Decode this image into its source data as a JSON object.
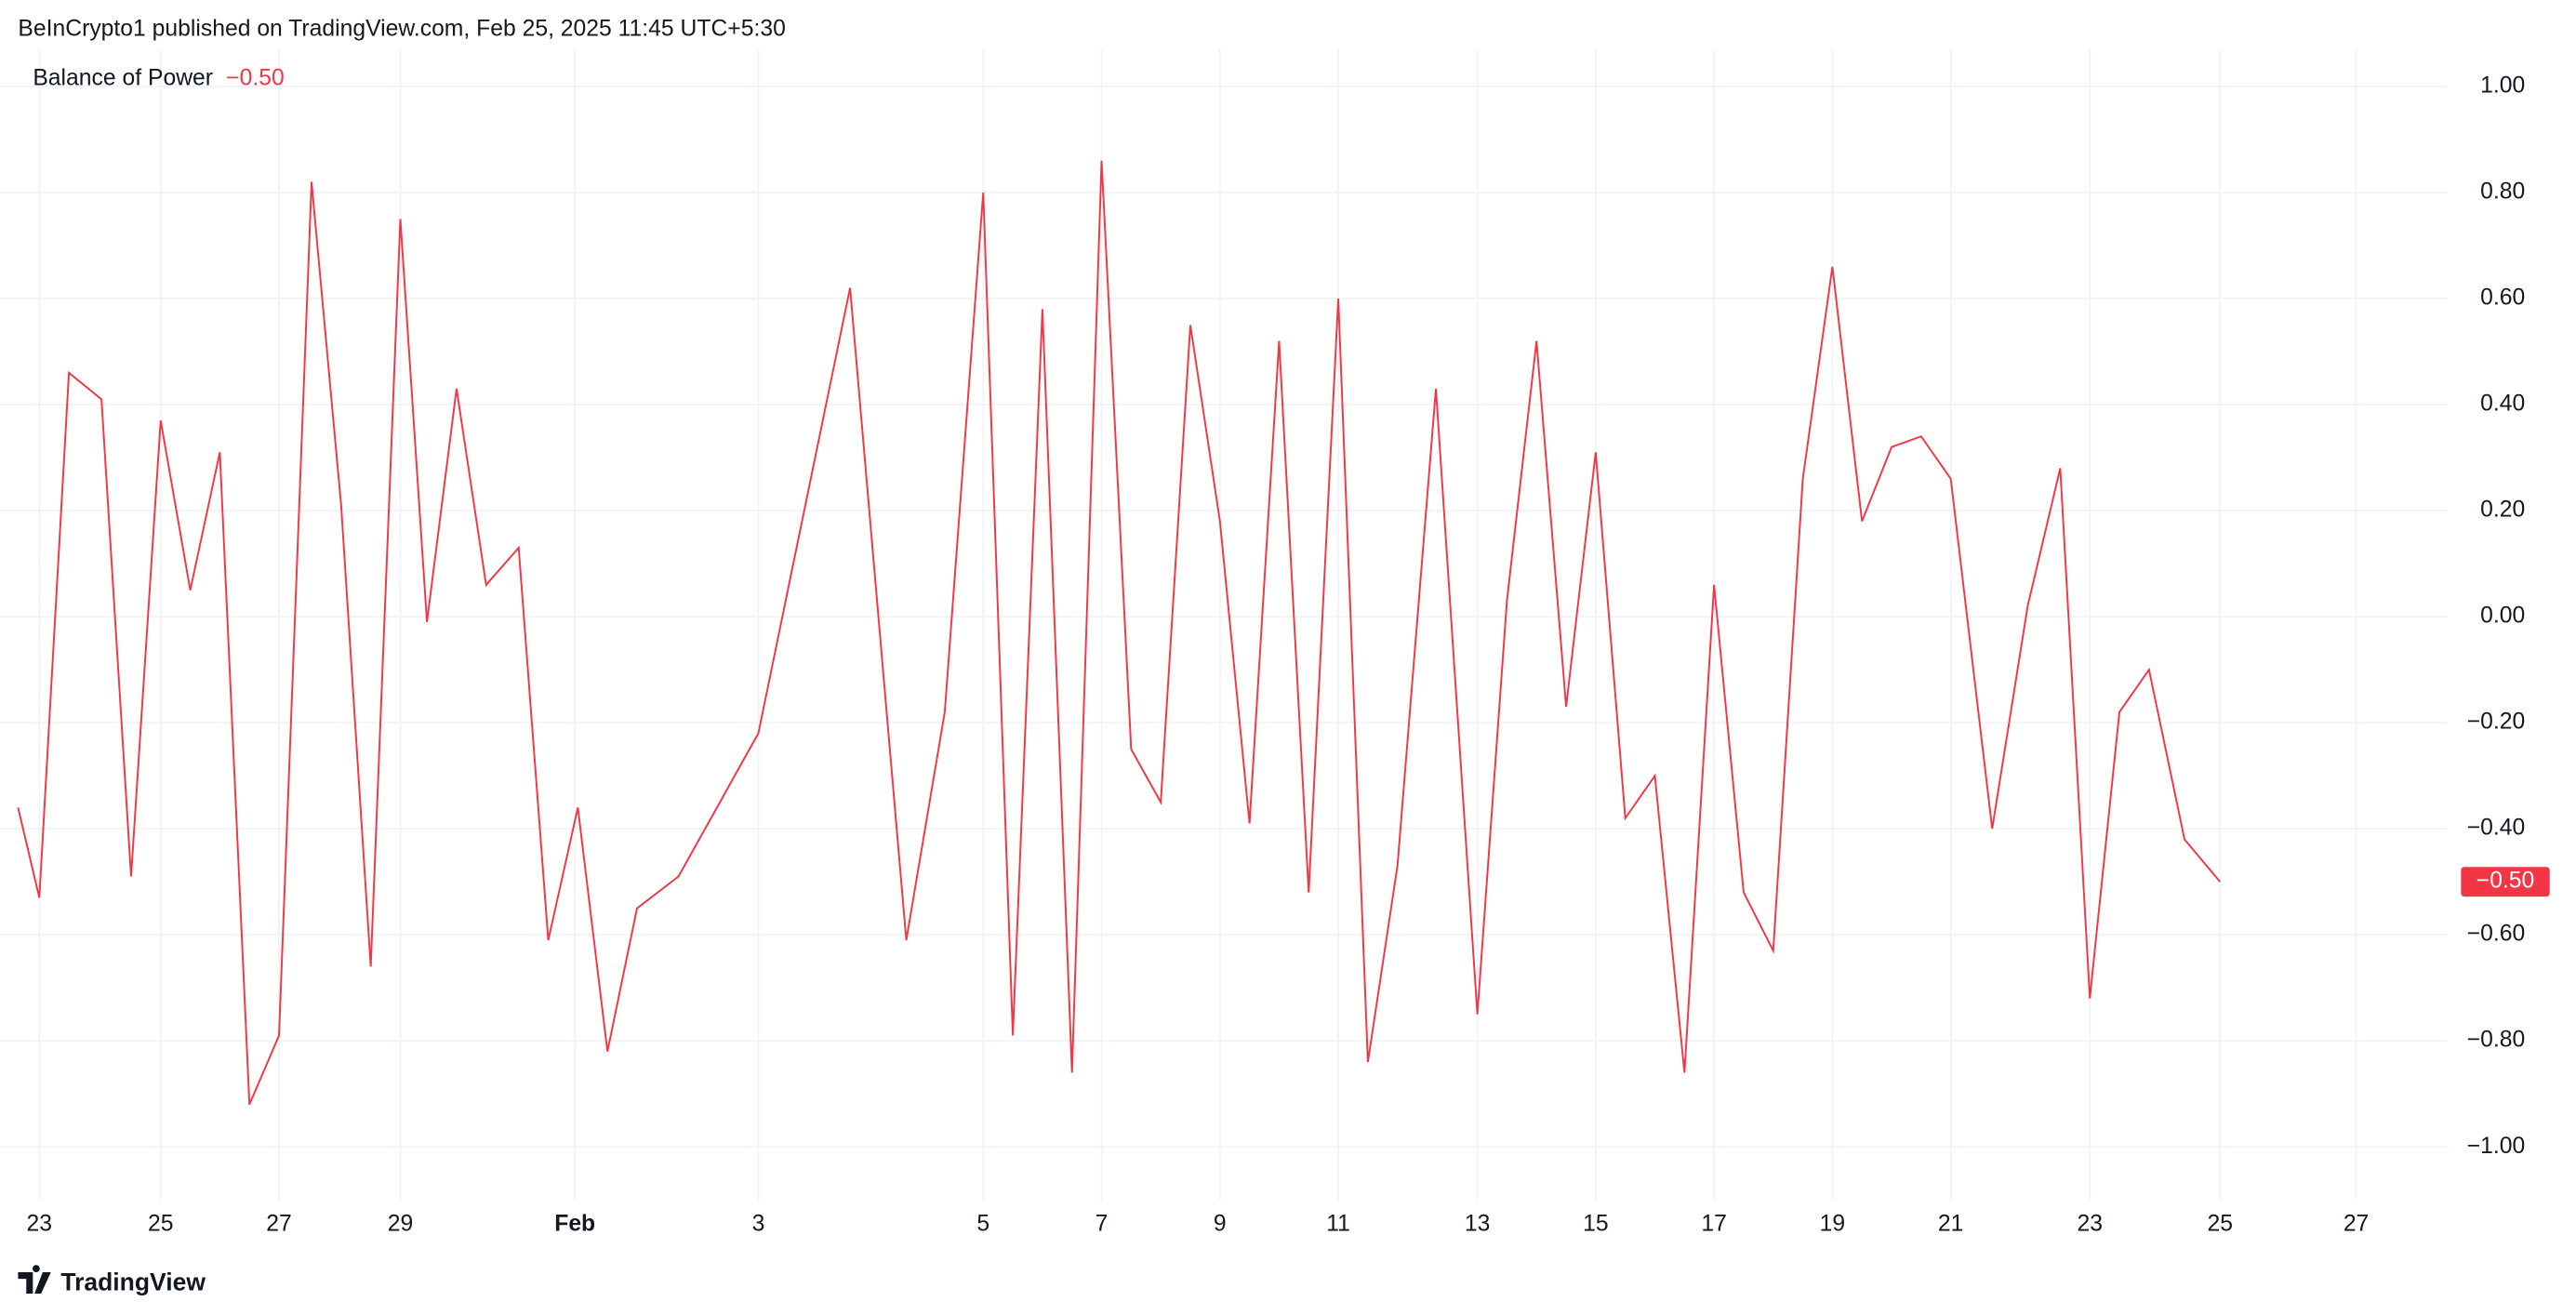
{
  "header": "BeInCrypto1 published on TradingView.com, Feb 25, 2025 11:45 UTC+5:30",
  "footer": "TradingView",
  "chart_data": {
    "type": "line",
    "x": [
      -0.72,
      0,
      1,
      2.1,
      3.1,
      4.1,
      5.1,
      6.1,
      7.1,
      8.1,
      9.2,
      10.2,
      11.2,
      12.2,
      13.1,
      14.1,
      15.1,
      16.2,
      17.2,
      18.2,
      19.2,
      20.2,
      21.6,
      24.3,
      27.4,
      29.3,
      30.6,
      31.9,
      32.9,
      33.9,
      34.9,
      35.9,
      36.9,
      37.9,
      38.9,
      39.9,
      40.9,
      41.9,
      42.9,
      43.9,
      44.9,
      45.9,
      47.2,
      48.6,
      49.6,
      50.6,
      51.6,
      52.6,
      53.6,
      54.6,
      55.6,
      56.6,
      57.6,
      58.6,
      59.6,
      60.6,
      61.6,
      62.6,
      63.6,
      64.6,
      66,
      67.2,
      68.3,
      69.3,
      70.3,
      71.3,
      72.5,
      73.7
    ],
    "series": [
      {
        "name": "Balance of Power",
        "color": "#f23645",
        "values": [
          -0.36,
          -0.53,
          0.46,
          0.41,
          -0.49,
          0.37,
          0.05,
          0.31,
          -0.92,
          -0.79,
          0.82,
          0.21,
          -0.66,
          0.75,
          -0.01,
          0.43,
          0.06,
          0.13,
          -0.61,
          -0.36,
          -0.82,
          -0.55,
          -0.49,
          -0.22,
          0.62,
          -0.61,
          -0.18,
          0.8,
          -0.79,
          0.58,
          -0.86,
          0.86,
          -0.25,
          -0.35,
          0.55,
          0.18,
          -0.39,
          0.52,
          -0.52,
          0.6,
          -0.84,
          -0.47,
          0.43,
          -0.75,
          0.03,
          0.52,
          -0.17,
          0.31,
          -0.38,
          -0.3,
          -0.86,
          0.06,
          -0.52,
          -0.63,
          0.26,
          0.66,
          0.18,
          0.32,
          0.34,
          0.26,
          -0.4,
          0.02,
          0.28,
          -0.72,
          -0.18,
          -0.1,
          -0.42,
          -0.5
        ],
        "last_value_label": "−0.50"
      }
    ],
    "xlim": [
      -1.33,
      81.4
    ],
    "xticks": [
      {
        "value": 0,
        "label": "23"
      },
      {
        "value": 4.1,
        "label": "25"
      },
      {
        "value": 8.1,
        "label": "27"
      },
      {
        "value": 12.2,
        "label": "29"
      },
      {
        "value": 18.1,
        "label": "Feb"
      },
      {
        "value": 24.3,
        "label": "3"
      },
      {
        "value": 31.9,
        "label": "5"
      },
      {
        "value": 35.9,
        "label": "7"
      },
      {
        "value": 39.9,
        "label": "9"
      },
      {
        "value": 43.9,
        "label": "11"
      },
      {
        "value": 48.6,
        "label": "13"
      },
      {
        "value": 52.6,
        "label": "15"
      },
      {
        "value": 56.6,
        "label": "17"
      },
      {
        "value": 60.6,
        "label": "19"
      },
      {
        "value": 64.6,
        "label": "21"
      },
      {
        "value": 69.3,
        "label": "23"
      },
      {
        "value": 73.7,
        "label": "25"
      },
      {
        "value": 78.3,
        "label": "27"
      }
    ],
    "ylim": [
      -1.1,
      1.07
    ],
    "yticks": [
      {
        "value": 1,
        "label": "1.00"
      },
      {
        "value": 0.8,
        "label": "0.80"
      },
      {
        "value": 0.6,
        "label": "0.60"
      },
      {
        "value": 0.4,
        "label": "0.40"
      },
      {
        "value": 0.2,
        "label": "0.20"
      },
      {
        "value": 0,
        "label": "0.00"
      },
      {
        "value": -0.2,
        "label": "−0.20"
      },
      {
        "value": -0.4,
        "label": "−0.40"
      },
      {
        "value": -0.6,
        "label": "−0.60"
      },
      {
        "value": -0.8,
        "label": "−0.80"
      },
      {
        "value": -1,
        "label": "−1.00"
      }
    ],
    "grid": true
  }
}
